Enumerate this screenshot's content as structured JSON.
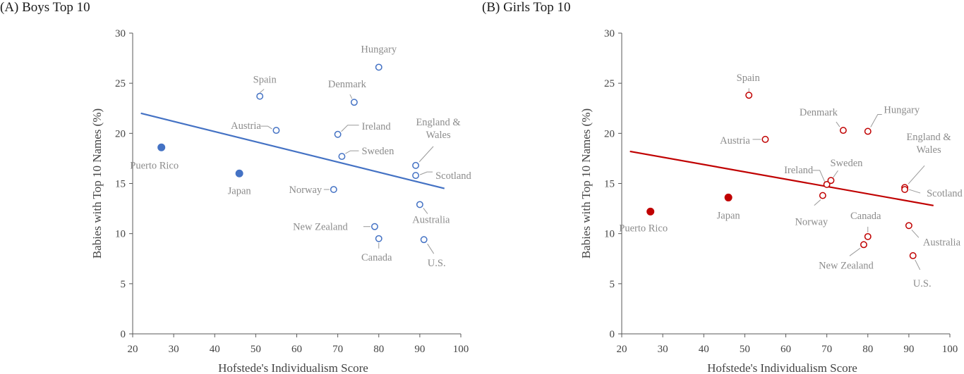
{
  "chart_data": [
    {
      "type": "scatter",
      "panel": "A",
      "title": "(A) Boys Top 10",
      "xlabel": "Hofstede's Individualism Score",
      "ylabel": "Babies with Top 10 Names (%)",
      "xlim": [
        20,
        100
      ],
      "ylim": [
        0,
        30
      ],
      "xticks": [
        "20",
        "30",
        "40",
        "50",
        "60",
        "70",
        "80",
        "90",
        "100"
      ],
      "yticks": [
        "0",
        "5",
        "10",
        "15",
        "20",
        "25",
        "30"
      ],
      "color": "#4472C4",
      "trendline": {
        "x": [
          22,
          96
        ],
        "y": [
          22.0,
          14.5
        ]
      },
      "points": [
        {
          "name": "Puerto Rico",
          "x": 27,
          "y": 18.6,
          "filled": true
        },
        {
          "name": "Japan",
          "x": 46,
          "y": 16.0,
          "filled": true
        },
        {
          "name": "Spain",
          "x": 51,
          "y": 23.7,
          "filled": false
        },
        {
          "name": "Austria",
          "x": 55,
          "y": 20.3,
          "filled": false
        },
        {
          "name": "Norway",
          "x": 69,
          "y": 14.4,
          "filled": false
        },
        {
          "name": "Ireland",
          "x": 70,
          "y": 19.9,
          "filled": false
        },
        {
          "name": "Sweden",
          "x": 71,
          "y": 17.7,
          "filled": false
        },
        {
          "name": "Denmark",
          "x": 74,
          "y": 23.1,
          "filled": false
        },
        {
          "name": "New Zealand",
          "x": 79,
          "y": 10.7,
          "filled": false
        },
        {
          "name": "Hungary",
          "x": 80,
          "y": 26.6,
          "filled": false
        },
        {
          "name": "Canada",
          "x": 80,
          "y": 9.5,
          "filled": false
        },
        {
          "name": "England & Wales",
          "x": 89,
          "y": 16.8,
          "filled": false
        },
        {
          "name": "Scotland",
          "x": 89,
          "y": 15.8,
          "filled": false
        },
        {
          "name": "Australia",
          "x": 90,
          "y": 12.9,
          "filled": false
        },
        {
          "name": "U.S.",
          "x": 91,
          "y": 9.4,
          "filled": false
        }
      ]
    },
    {
      "type": "scatter",
      "panel": "B",
      "title": "(B) Girls Top 10",
      "xlabel": "Hofstede's Individualism Score",
      "ylabel": "Babies with Top 10 Names (%)",
      "xlim": [
        20,
        100
      ],
      "ylim": [
        0,
        30
      ],
      "xticks": [
        "20",
        "30",
        "40",
        "50",
        "60",
        "70",
        "80",
        "90",
        "100"
      ],
      "yticks": [
        "0",
        "5",
        "10",
        "15",
        "20",
        "25",
        "30"
      ],
      "color": "#C00000",
      "trendline": {
        "x": [
          22,
          96
        ],
        "y": [
          18.2,
          12.8
        ]
      },
      "points": [
        {
          "name": "Puerto Rico",
          "x": 27,
          "y": 12.2,
          "filled": true
        },
        {
          "name": "Japan",
          "x": 46,
          "y": 13.6,
          "filled": true
        },
        {
          "name": "Spain",
          "x": 51,
          "y": 23.8,
          "filled": false
        },
        {
          "name": "Austria",
          "x": 55,
          "y": 19.4,
          "filled": false
        },
        {
          "name": "Norway",
          "x": 69,
          "y": 13.8,
          "filled": false
        },
        {
          "name": "Ireland",
          "x": 70,
          "y": 14.9,
          "filled": false
        },
        {
          "name": "Sweden",
          "x": 71,
          "y": 15.3,
          "filled": false
        },
        {
          "name": "Denmark",
          "x": 74,
          "y": 20.3,
          "filled": false
        },
        {
          "name": "New Zealand",
          "x": 79,
          "y": 8.9,
          "filled": false
        },
        {
          "name": "Hungary",
          "x": 80,
          "y": 20.2,
          "filled": false
        },
        {
          "name": "Canada",
          "x": 80,
          "y": 9.7,
          "filled": false
        },
        {
          "name": "England & Wales",
          "x": 89,
          "y": 14.6,
          "filled": false
        },
        {
          "name": "Scotland",
          "x": 89,
          "y": 14.4,
          "filled": false
        },
        {
          "name": "Australia",
          "x": 90,
          "y": 10.8,
          "filled": false
        },
        {
          "name": "U.S.",
          "x": 91,
          "y": 7.8,
          "filled": false
        }
      ]
    }
  ]
}
